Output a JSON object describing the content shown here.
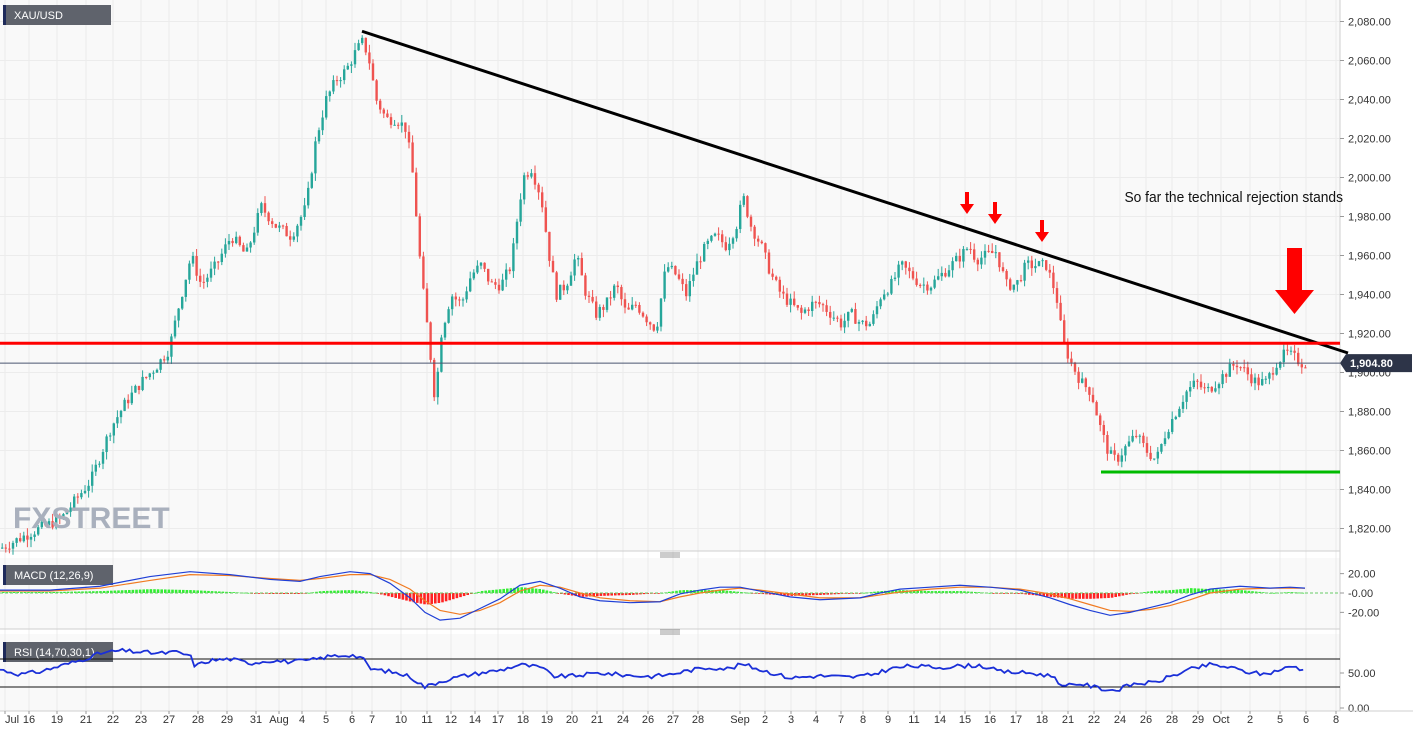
{
  "chart_data": {
    "type": "candlestick",
    "symbol": "XAU/USD",
    "last_price": "1,904.80",
    "annotation": "So far the technical  rejection stands",
    "watermark": "FXSTREET",
    "colors": {
      "up": "#26a69a",
      "down": "#ef5350",
      "trendline": "#000000",
      "resistance": "#ff0000",
      "support": "#00bb00",
      "arrows": "#ff0000",
      "macd_line": "#1f3fd6",
      "signal_line": "#f07b22",
      "hist_up": "#33ee33",
      "hist_down": "#ff2222",
      "rsi_line": "#1a2fd8"
    },
    "x_ticks": [
      "Jul",
      "16",
      "19",
      "21",
      "22",
      "23",
      "27",
      "28",
      "29",
      "31",
      "Aug",
      "4",
      "5",
      "6",
      "7",
      "10",
      "11",
      "12",
      "14",
      "17",
      "18",
      "19",
      "20",
      "21",
      "24",
      "26",
      "27",
      "28",
      "Sep",
      "2",
      "3",
      "4",
      "7",
      "8",
      "9",
      "11",
      "14",
      "15",
      "16",
      "17",
      "18",
      "21",
      "22",
      "24",
      "26",
      "28",
      "29",
      "Oct",
      "2",
      "5",
      "6",
      "8"
    ],
    "main": {
      "y_ticks": [
        "2,080.00",
        "2,060.00",
        "2,040.00",
        "2,020.00",
        "2,000.00",
        "1,980.00",
        "1,960.00",
        "1,940.00",
        "1,920.00",
        "1,900.00",
        "1,880.00",
        "1,860.00",
        "1,840.00",
        "1,820.00"
      ],
      "ylim": [
        1810,
        2090
      ],
      "trendline": {
        "from": [
          "Aug 6",
          2075
        ],
        "to": [
          "Oct 8",
          1910
        ]
      },
      "resistance": 1915,
      "support": {
        "value": 1849,
        "from": "Sep 23",
        "to": "Oct 8"
      },
      "last_price_level": 1904.8,
      "arrows_at": [
        "Sep 15",
        "Sep 16",
        "Sep 18",
        "Oct 5"
      ],
      "path": [
        [
          0,
          1810
        ],
        [
          30,
          1818
        ],
        [
          60,
          1825
        ],
        [
          90,
          1845
        ],
        [
          110,
          1872
        ],
        [
          125,
          1885
        ],
        [
          140,
          1895
        ],
        [
          155,
          1903
        ],
        [
          168,
          1912
        ],
        [
          178,
          1935
        ],
        [
          190,
          1960
        ],
        [
          200,
          1945
        ],
        [
          215,
          1955
        ],
        [
          230,
          1970
        ],
        [
          245,
          1960
        ],
        [
          260,
          1985
        ],
        [
          275,
          1975
        ],
        [
          290,
          1970
        ],
        [
          305,
          1985
        ],
        [
          315,
          2020
        ],
        [
          325,
          2040
        ],
        [
          335,
          2050
        ],
        [
          345,
          2055
        ],
        [
          355,
          2065
        ],
        [
          362,
          2070
        ],
        [
          368,
          2060
        ],
        [
          375,
          2040
        ],
        [
          385,
          2030
        ],
        [
          395,
          2030
        ],
        [
          405,
          2025
        ],
        [
          412,
          2000
        ],
        [
          420,
          1950
        ],
        [
          428,
          1915
        ],
        [
          434,
          1885
        ],
        [
          440,
          1920
        ],
        [
          450,
          1940
        ],
        [
          460,
          1935
        ],
        [
          470,
          1950
        ],
        [
          480,
          1955
        ],
        [
          490,
          1945
        ],
        [
          500,
          1945
        ],
        [
          510,
          1955
        ],
        [
          515,
          1975
        ],
        [
          522,
          2000
        ],
        [
          530,
          2005
        ],
        [
          540,
          1990
        ],
        [
          548,
          1960
        ],
        [
          555,
          1940
        ],
        [
          565,
          1945
        ],
        [
          575,
          1960
        ],
        [
          585,
          1940
        ],
        [
          595,
          1930
        ],
        [
          605,
          1935
        ],
        [
          615,
          1945
        ],
        [
          625,
          1930
        ],
        [
          635,
          1935
        ],
        [
          645,
          1928
        ],
        [
          655,
          1922
        ],
        [
          665,
          1955
        ],
        [
          675,
          1950
        ],
        [
          685,
          1940
        ],
        [
          695,
          1955
        ],
        [
          705,
          1965
        ],
        [
          715,
          1970
        ],
        [
          725,
          1965
        ],
        [
          735,
          1975
        ],
        [
          742,
          1990
        ],
        [
          750,
          1975
        ],
        [
          760,
          1965
        ],
        [
          770,
          1950
        ],
        [
          780,
          1940
        ],
        [
          790,
          1935
        ],
        [
          800,
          1930
        ],
        [
          810,
          1935
        ],
        [
          820,
          1935
        ],
        [
          830,
          1930
        ],
        [
          840,
          1925
        ],
        [
          850,
          1930
        ],
        [
          860,
          1925
        ],
        [
          870,
          1925
        ],
        [
          880,
          1940
        ],
        [
          890,
          1945
        ],
        [
          900,
          1955
        ],
        [
          910,
          1950
        ],
        [
          920,
          1945
        ],
        [
          930,
          1945
        ],
        [
          940,
          1950
        ],
        [
          950,
          1955
        ],
        [
          960,
          1960
        ],
        [
          968,
          1965
        ],
        [
          975,
          1958
        ],
        [
          985,
          1960
        ],
        [
          995,
          1962
        ],
        [
          1005,
          1945
        ],
        [
          1015,
          1945
        ],
        [
          1025,
          1955
        ],
        [
          1035,
          1955
        ],
        [
          1045,
          1955
        ],
        [
          1055,
          1940
        ],
        [
          1062,
          1915
        ],
        [
          1070,
          1905
        ],
        [
          1080,
          1895
        ],
        [
          1090,
          1890
        ],
        [
          1100,
          1870
        ],
        [
          1108,
          1858
        ],
        [
          1115,
          1855
        ],
        [
          1125,
          1862
        ],
        [
          1135,
          1868
        ],
        [
          1145,
          1860
        ],
        [
          1155,
          1855
        ],
        [
          1165,
          1870
        ],
        [
          1175,
          1880
        ],
        [
          1185,
          1890
        ],
        [
          1195,
          1895
        ],
        [
          1205,
          1890
        ],
        [
          1215,
          1895
        ],
        [
          1225,
          1900
        ],
        [
          1235,
          1905
        ],
        [
          1245,
          1900
        ],
        [
          1255,
          1895
        ],
        [
          1265,
          1895
        ],
        [
          1275,
          1905
        ],
        [
          1285,
          1910
        ],
        [
          1292,
          1908
        ],
        [
          1300,
          1905
        ],
        [
          1305,
          1904.8
        ]
      ]
    },
    "macd": {
      "label": "MACD (12,26,9)",
      "y_ticks": [
        "20.00",
        "-0.00",
        "-20.00"
      ],
      "ylim": [
        -32,
        32
      ],
      "line": [
        [
          0,
          3
        ],
        [
          50,
          3
        ],
        [
          100,
          7
        ],
        [
          150,
          17
        ],
        [
          190,
          22
        ],
        [
          230,
          19
        ],
        [
          270,
          14
        ],
        [
          300,
          12
        ],
        [
          320,
          17
        ],
        [
          350,
          22
        ],
        [
          370,
          20
        ],
        [
          390,
          10
        ],
        [
          410,
          -5
        ],
        [
          425,
          -20
        ],
        [
          440,
          -28
        ],
        [
          460,
          -26
        ],
        [
          480,
          -16
        ],
        [
          500,
          -6
        ],
        [
          520,
          8
        ],
        [
          540,
          12
        ],
        [
          560,
          5
        ],
        [
          580,
          -4
        ],
        [
          600,
          -8
        ],
        [
          630,
          -10
        ],
        [
          660,
          -9
        ],
        [
          680,
          -1
        ],
        [
          700,
          3
        ],
        [
          720,
          6
        ],
        [
          740,
          6
        ],
        [
          760,
          2
        ],
        [
          790,
          -4
        ],
        [
          820,
          -7
        ],
        [
          860,
          -5
        ],
        [
          880,
          0
        ],
        [
          900,
          4
        ],
        [
          930,
          6
        ],
        [
          960,
          8
        ],
        [
          990,
          6
        ],
        [
          1020,
          3
        ],
        [
          1050,
          -5
        ],
        [
          1070,
          -12
        ],
        [
          1090,
          -18
        ],
        [
          1110,
          -23
        ],
        [
          1130,
          -20
        ],
        [
          1150,
          -15
        ],
        [
          1170,
          -10
        ],
        [
          1190,
          -2
        ],
        [
          1210,
          4
        ],
        [
          1240,
          7
        ],
        [
          1270,
          5
        ],
        [
          1290,
          6
        ],
        [
          1305,
          5
        ]
      ],
      "signal": [
        [
          0,
          2
        ],
        [
          50,
          2
        ],
        [
          100,
          5
        ],
        [
          150,
          13
        ],
        [
          190,
          19
        ],
        [
          230,
          18
        ],
        [
          270,
          15
        ],
        [
          300,
          13
        ],
        [
          320,
          15
        ],
        [
          350,
          19
        ],
        [
          370,
          19
        ],
        [
          390,
          14
        ],
        [
          410,
          4
        ],
        [
          425,
          -8
        ],
        [
          440,
          -18
        ],
        [
          460,
          -22
        ],
        [
          480,
          -18
        ],
        [
          500,
          -10
        ],
        [
          520,
          2
        ],
        [
          540,
          8
        ],
        [
          560,
          6
        ],
        [
          580,
          0
        ],
        [
          600,
          -5
        ],
        [
          630,
          -8
        ],
        [
          660,
          -9
        ],
        [
          680,
          -4
        ],
        [
          700,
          0
        ],
        [
          720,
          3
        ],
        [
          740,
          5
        ],
        [
          760,
          3
        ],
        [
          790,
          -1
        ],
        [
          820,
          -5
        ],
        [
          860,
          -5
        ],
        [
          880,
          -2
        ],
        [
          900,
          1
        ],
        [
          930,
          4
        ],
        [
          960,
          6
        ],
        [
          990,
          6
        ],
        [
          1020,
          4
        ],
        [
          1050,
          -1
        ],
        [
          1070,
          -6
        ],
        [
          1090,
          -12
        ],
        [
          1110,
          -18
        ],
        [
          1130,
          -19
        ],
        [
          1150,
          -17
        ],
        [
          1170,
          -13
        ],
        [
          1190,
          -7
        ],
        [
          1210,
          0
        ],
        [
          1240,
          4
        ],
        [
          1270,
          5
        ],
        [
          1290,
          5
        ],
        [
          1305,
          5
        ]
      ]
    },
    "rsi": {
      "label": "RSI (14,70,30,1)",
      "y_ticks": [
        "50.00",
        "0.00"
      ],
      "ylim": [
        0,
        100
      ],
      "levels": [
        70,
        30
      ],
      "values": [
        [
          0,
          55
        ],
        [
          20,
          48
        ],
        [
          40,
          52
        ],
        [
          60,
          60
        ],
        [
          80,
          68
        ],
        [
          100,
          78
        ],
        [
          120,
          82
        ],
        [
          140,
          80
        ],
        [
          160,
          78
        ],
        [
          175,
          80
        ],
        [
          190,
          75
        ],
        [
          195,
          60
        ],
        [
          210,
          68
        ],
        [
          230,
          70
        ],
        [
          250,
          64
        ],
        [
          270,
          68
        ],
        [
          290,
          66
        ],
        [
          310,
          68
        ],
        [
          330,
          74
        ],
        [
          350,
          76
        ],
        [
          362,
          72
        ],
        [
          370,
          56
        ],
        [
          390,
          52
        ],
        [
          410,
          45
        ],
        [
          425,
          30
        ],
        [
          440,
          38
        ],
        [
          460,
          45
        ],
        [
          480,
          50
        ],
        [
          500,
          54
        ],
        [
          520,
          62
        ],
        [
          540,
          58
        ],
        [
          555,
          45
        ],
        [
          575,
          46
        ],
        [
          600,
          50
        ],
        [
          625,
          47
        ],
        [
          650,
          45
        ],
        [
          670,
          48
        ],
        [
          690,
          54
        ],
        [
          710,
          58
        ],
        [
          730,
          56
        ],
        [
          742,
          63
        ],
        [
          760,
          55
        ],
        [
          790,
          43
        ],
        [
          820,
          46
        ],
        [
          850,
          44
        ],
        [
          870,
          47
        ],
        [
          890,
          56
        ],
        [
          910,
          60
        ],
        [
          940,
          58
        ],
        [
          960,
          60
        ],
        [
          980,
          61
        ],
        [
          1000,
          52
        ],
        [
          1030,
          50
        ],
        [
          1055,
          45
        ],
        [
          1062,
          30
        ],
        [
          1080,
          35
        ],
        [
          1100,
          28
        ],
        [
          1115,
          25
        ],
        [
          1135,
          35
        ],
        [
          1155,
          36
        ],
        [
          1170,
          45
        ],
        [
          1190,
          55
        ],
        [
          1210,
          62
        ],
        [
          1230,
          58
        ],
        [
          1245,
          52
        ],
        [
          1265,
          48
        ],
        [
          1280,
          55
        ],
        [
          1295,
          60
        ],
        [
          1305,
          52
        ]
      ]
    }
  }
}
